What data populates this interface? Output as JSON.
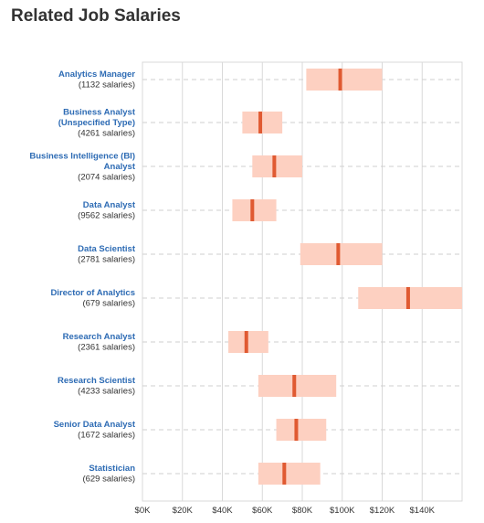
{
  "page": {
    "title": "Related Job Salaries"
  },
  "colors": {
    "range_fill": "#fdd0c1",
    "median_mark": "#e05a32",
    "job_link": "#2d6bb4",
    "grid": "#d9d9d9",
    "row_dash": "#cfcfcf"
  },
  "chart_data": {
    "type": "range",
    "title": "",
    "xlabel": "",
    "ylabel": "",
    "xlim": [
      0,
      160000
    ],
    "x_ticks": [
      0,
      20000,
      40000,
      60000,
      80000,
      100000,
      120000,
      140000
    ],
    "x_tick_labels": [
      "$0K",
      "$20K",
      "$40K",
      "$60K",
      "$80K",
      "$100K",
      "$120K",
      "$140K"
    ],
    "grid": true,
    "legend": "none",
    "series": [
      {
        "job": "Analytics Manager",
        "count_label": "(1132 salaries)",
        "low": 82000,
        "median": 99000,
        "high": 120000
      },
      {
        "job": "Business Analyst (Unspecified Type)",
        "count_label": "(4261 salaries)",
        "low": 50000,
        "median": 59000,
        "high": 70000
      },
      {
        "job": "Business Intelligence (BI) Analyst",
        "count_label": "(2074 salaries)",
        "low": 55000,
        "median": 66000,
        "high": 80000
      },
      {
        "job": "Data Analyst",
        "count_label": "(9562 salaries)",
        "low": 45000,
        "median": 55000,
        "high": 67000
      },
      {
        "job": "Data Scientist",
        "count_label": "(2781 salaries)",
        "low": 79000,
        "median": 98000,
        "high": 120000
      },
      {
        "job": "Director of Analytics",
        "count_label": "(679 salaries)",
        "low": 108000,
        "median": 133000,
        "high": 160000
      },
      {
        "job": "Research Analyst",
        "count_label": "(2361 salaries)",
        "low": 43000,
        "median": 52000,
        "high": 63000
      },
      {
        "job": "Research Scientist",
        "count_label": "(4233 salaries)",
        "low": 58000,
        "median": 76000,
        "high": 97000
      },
      {
        "job": "Senior Data Analyst",
        "count_label": "(1672 salaries)",
        "low": 67000,
        "median": 77000,
        "high": 92000
      },
      {
        "job": "Statistician",
        "count_label": "(629 salaries)",
        "low": 58000,
        "median": 71000,
        "high": 89000
      }
    ]
  }
}
